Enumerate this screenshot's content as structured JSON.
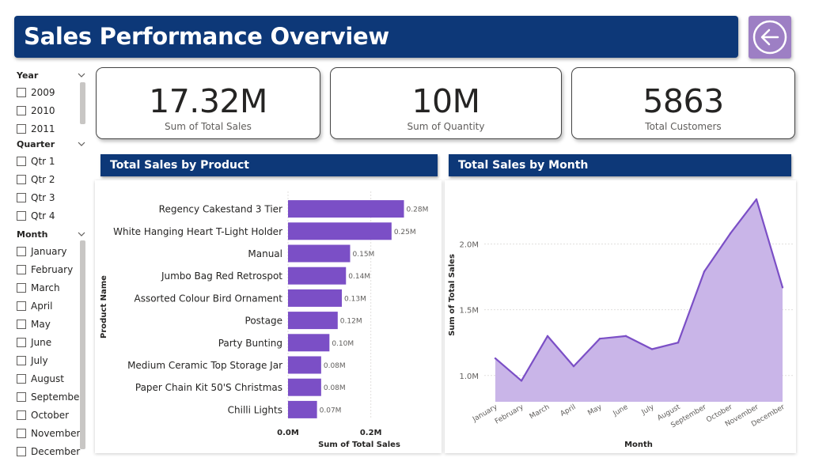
{
  "header": {
    "title": "Sales Performance Overview",
    "back_icon": "back-arrow-icon"
  },
  "slicers": {
    "year": {
      "label": "Year",
      "items": [
        "2009",
        "2010",
        "2011"
      ]
    },
    "quarter": {
      "label": "Quarter",
      "items": [
        "Qtr 1",
        "Qtr 2",
        "Qtr 3",
        "Qtr 4"
      ]
    },
    "month": {
      "label": "Month",
      "items": [
        "January",
        "February",
        "March",
        "April",
        "May",
        "June",
        "July",
        "August",
        "September",
        "October",
        "November",
        "December"
      ]
    }
  },
  "kpis": [
    {
      "value": "17.32M",
      "label": "Sum of Total Sales"
    },
    {
      "value": "10M",
      "label": "Sum of Quantity"
    },
    {
      "value": "5863",
      "label": "Total Customers"
    }
  ],
  "sections": {
    "product_title": "Total Sales by Product",
    "month_title": "Total Sales by Month"
  },
  "colors": {
    "accent": "#7b4fc6",
    "area_fill": "#c9b5e8",
    "header_bg": "#0d3878",
    "back_button": "#9d7fc4"
  },
  "chart_data": [
    {
      "type": "bar",
      "orientation": "horizontal",
      "categories": [
        "Regency Cakestand 3 Tier",
        "White Hanging Heart T-Light Holder",
        "Manual",
        "Jumbo Bag Red Retrospot",
        "Assorted Colour Bird Ornament",
        "Postage",
        "Party Bunting",
        "Medium Ceramic Top Storage Jar",
        "Paper Chain Kit 50'S Christmas",
        "Chilli Lights"
      ],
      "values": [
        0.28,
        0.25,
        0.15,
        0.14,
        0.13,
        0.12,
        0.1,
        0.08,
        0.08,
        0.07
      ],
      "data_labels": [
        "0.28M",
        "0.25M",
        "0.15M",
        "0.14M",
        "0.13M",
        "0.12M",
        "0.10M",
        "0.08M",
        "0.08M",
        "0.07M"
      ],
      "xlabel": "Sum of Total Sales",
      "ylabel": "Product Name",
      "xticks": [
        "0.0M",
        "0.2M"
      ],
      "xlim": [
        0,
        0.3
      ],
      "grid": true
    },
    {
      "type": "area",
      "categories": [
        "January",
        "February",
        "March",
        "April",
        "May",
        "June",
        "July",
        "August",
        "September",
        "October",
        "November",
        "December"
      ],
      "values": [
        1.13,
        0.96,
        1.3,
        1.07,
        1.28,
        1.3,
        1.2,
        1.25,
        1.79,
        2.08,
        2.34,
        1.67
      ],
      "xlabel": "Month",
      "ylabel": "Sum of Total Sales",
      "yticks": [
        "1.0M",
        "1.5M",
        "2.0M"
      ],
      "ylim": [
        0.8,
        2.4
      ],
      "grid": true
    }
  ]
}
